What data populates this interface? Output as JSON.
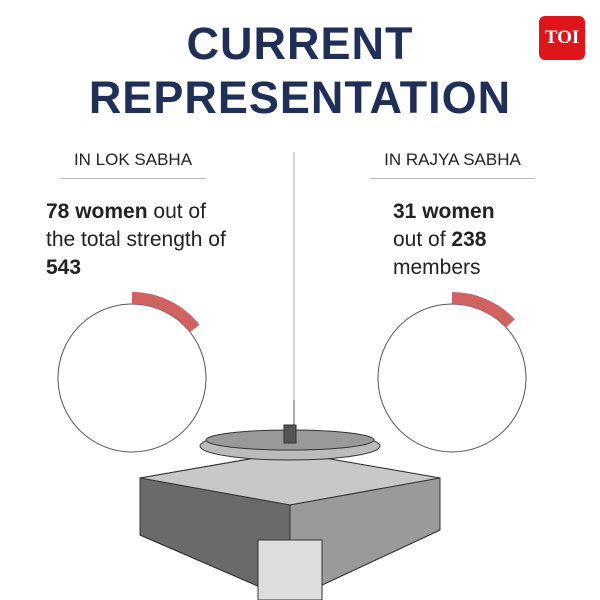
{
  "header": {
    "title_lines": [
      "CURRENT",
      "REPRESENTATION"
    ],
    "logo": "TOI"
  },
  "panels": [
    {
      "heading": "IN LOK SABHA",
      "women": 78,
      "women_label": "women",
      "before_total": "out of the total strength of",
      "total": 543
    },
    {
      "heading": "IN RAJYA SABHA",
      "women": 31,
      "women_label": "women",
      "before_total": "out of",
      "total": 238,
      "after_total": "members"
    }
  ]
}
